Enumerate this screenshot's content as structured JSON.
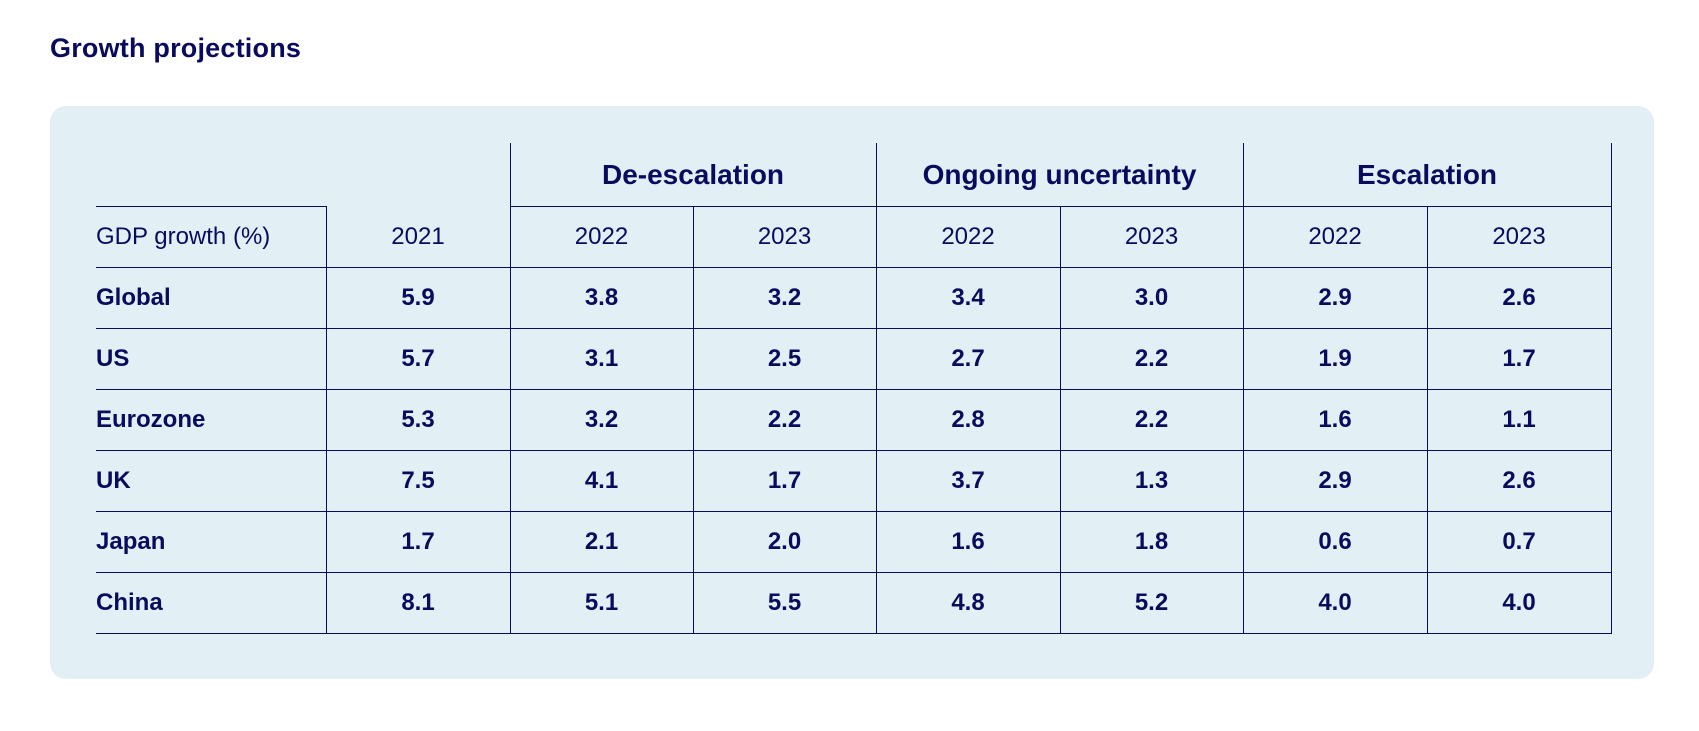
{
  "title": "Growth projections",
  "chart_data": {
    "type": "table",
    "row_header_label": "GDP growth (%)",
    "column_groups": [
      {
        "name": "",
        "columns": [
          "2021"
        ]
      },
      {
        "name": "De-escalation",
        "columns": [
          "2022",
          "2023"
        ]
      },
      {
        "name": "Ongoing uncertainty",
        "columns": [
          "2022",
          "2023"
        ]
      },
      {
        "name": "Escalation",
        "columns": [
          "2022",
          "2023"
        ]
      }
    ],
    "years": [
      "2021",
      "2022",
      "2023",
      "2022",
      "2023",
      "2022",
      "2023"
    ],
    "rows": [
      {
        "label": "Global",
        "values": [
          "5.9",
          "3.8",
          "3.2",
          "3.4",
          "3.0",
          "2.9",
          "2.6"
        ]
      },
      {
        "label": "US",
        "values": [
          "5.7",
          "3.1",
          "2.5",
          "2.7",
          "2.2",
          "1.9",
          "1.7"
        ]
      },
      {
        "label": "Eurozone",
        "values": [
          "5.3",
          "3.2",
          "2.2",
          "2.8",
          "2.2",
          "1.6",
          "1.1"
        ]
      },
      {
        "label": "UK",
        "values": [
          "7.5",
          "4.1",
          "1.7",
          "3.7",
          "1.3",
          "2.9",
          "2.6"
        ]
      },
      {
        "label": "Japan",
        "values": [
          "1.7",
          "2.1",
          "2.0",
          "1.6",
          "1.8",
          "0.6",
          "0.7"
        ]
      },
      {
        "label": "China",
        "values": [
          "8.1",
          "5.1",
          "5.5",
          "4.8",
          "5.2",
          "4.0",
          "4.0"
        ]
      }
    ]
  },
  "colors": {
    "text": "#0b0b5e",
    "panel_background": "#e2f0f5",
    "rule": "#0b0b5e"
  }
}
